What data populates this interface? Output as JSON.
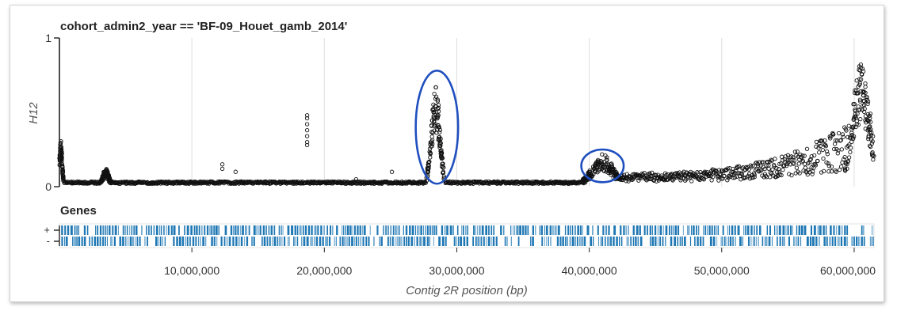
{
  "chart_data": {
    "type": "scatter",
    "title": "cohort_admin2_year == 'BF-09_Houet_gamb_2014'",
    "xlabel": "Contig 2R position (bp)",
    "ylabel": "H12",
    "xlim": [
      0,
      61500000
    ],
    "ylim": [
      0,
      1
    ],
    "y_ticks": [
      "0",
      "1"
    ],
    "x_ticks": [
      {
        "value": 10000000,
        "label": "10,000,000"
      },
      {
        "value": 20000000,
        "label": "20,000,000"
      },
      {
        "value": 30000000,
        "label": "30,000,000"
      },
      {
        "value": 40000000,
        "label": "40,000,000"
      },
      {
        "value": 50000000,
        "label": "50,000,000"
      },
      {
        "value": 60000000,
        "label": "60,000,000"
      }
    ],
    "grid": "vertical",
    "marker": "open circle",
    "baseline_h12": 0.02,
    "peaks": [
      {
        "center": 100000,
        "height": 0.28,
        "width": 150000
      },
      {
        "center": 3500000,
        "height": 0.1,
        "width": 300000
      },
      {
        "center": 28400000,
        "height": 0.65,
        "width": 450000
      },
      {
        "center": 41000000,
        "height": 0.19,
        "width": 1100000
      },
      {
        "center": 60500000,
        "height": 0.78,
        "width": 900000
      }
    ],
    "spikes": [
      {
        "x": 18700000,
        "values": [
          0.48,
          0.46,
          0.42,
          0.38,
          0.34,
          0.3,
          0.28
        ]
      },
      {
        "x": 12300000,
        "values": [
          0.15,
          0.12
        ]
      },
      {
        "x": 13300000,
        "values": [
          0.1
        ]
      },
      {
        "x": 22400000,
        "values": [
          0.05
        ]
      },
      {
        "x": 25100000,
        "values": [
          0.1
        ]
      }
    ],
    "rising_background": {
      "start": 42000000,
      "end": 61500000,
      "start_level": 0.04,
      "end_level": 0.35
    },
    "annotations": [
      {
        "type": "ellipse",
        "color": "#1f4fbf",
        "cx": 28500000,
        "cy": 0.4,
        "rx": 1600000,
        "ry": 0.38
      },
      {
        "type": "ellipse",
        "color": "#1f4fbf",
        "cx": 41000000,
        "cy": 0.14,
        "rx": 1600000,
        "ry": 0.11
      }
    ],
    "genes_track": {
      "title": "Genes",
      "strands": [
        "+",
        "-"
      ],
      "color": "#1f77b4",
      "gaps": [
        {
          "strand": "+",
          "start": 59800000,
          "end": 60400000
        },
        {
          "strand": "+",
          "start": 60800000,
          "end": 61100000
        },
        {
          "strand": "-",
          "start": 60900000,
          "end": 61100000
        }
      ]
    }
  }
}
